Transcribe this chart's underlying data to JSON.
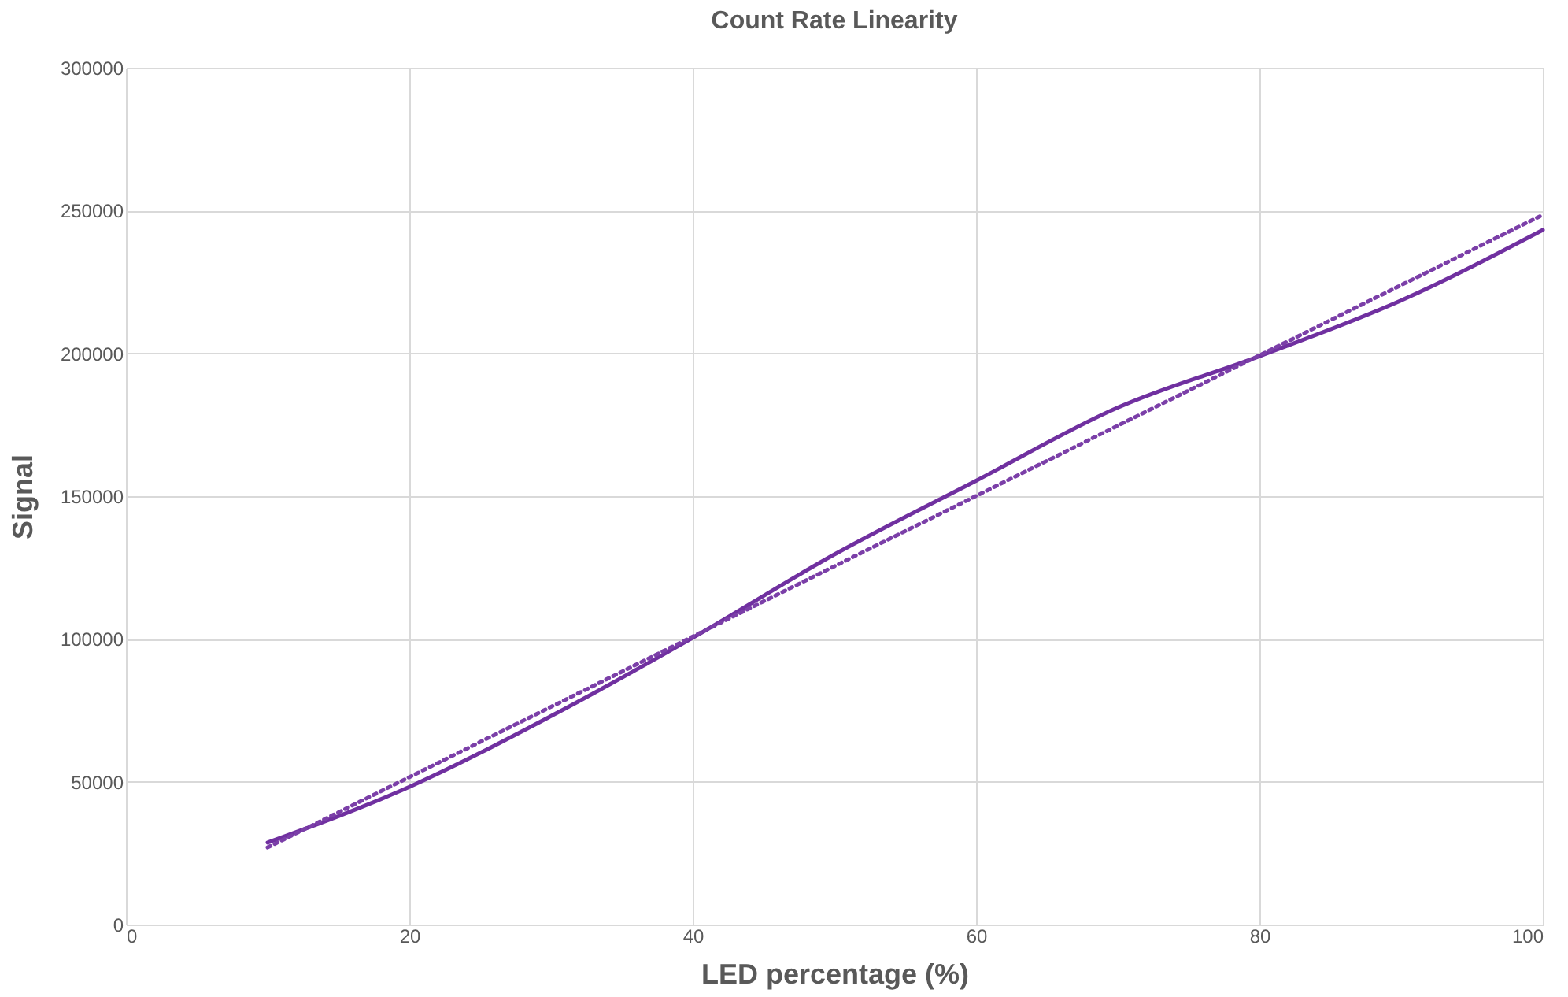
{
  "chart_data": {
    "type": "line",
    "title": "Count Rate Linearity",
    "xlabel": "LED percentage (%)",
    "ylabel": "Signal",
    "xlim": [
      0,
      100
    ],
    "xticks": [
      0,
      20,
      40,
      60,
      80,
      100
    ],
    "ylim": [
      0,
      300000
    ],
    "yticks": [
      0,
      50000,
      100000,
      150000,
      200000,
      250000,
      300000
    ],
    "grid": true,
    "marker": "none",
    "series": [
      {
        "color": "#7030a0",
        "line_style": "solid",
        "x": [
          10,
          20,
          30,
          40,
          50,
          60,
          70,
          80,
          90,
          100
        ],
        "values": [
          28700,
          48200,
          73000,
          100400,
          129600,
          155400,
          181000,
          199000,
          218500,
          243200
        ]
      },
      {
        "color": "#7b3fa8",
        "line_style": "dotted",
        "x": [
          10,
          100
        ],
        "values": [
          27000,
          248500
        ]
      }
    ]
  }
}
